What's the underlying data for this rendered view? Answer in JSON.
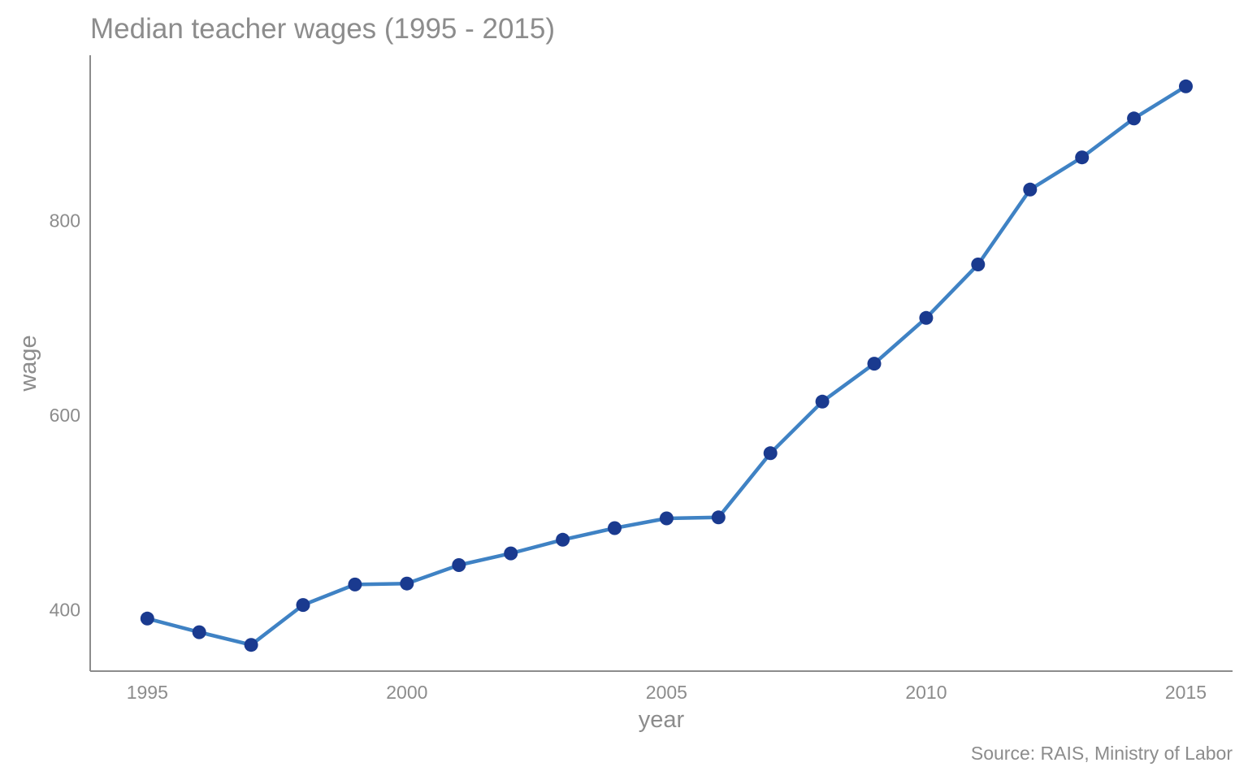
{
  "chart_data": {
    "type": "line",
    "title": "Median teacher wages (1995 - 2015)",
    "xlabel": "year",
    "ylabel": "wage",
    "caption": "Source: RAIS, Ministry of Labor",
    "xlim": [
      1993.9,
      2015.9
    ],
    "ylim": [
      337,
      970
    ],
    "grid": false,
    "x_ticks": [
      1995,
      2000,
      2005,
      2010,
      2015
    ],
    "x_tick_labels": [
      "1995",
      "2000",
      "2005",
      "2010",
      "2015"
    ],
    "y_ticks": [
      400,
      600,
      800
    ],
    "y_tick_labels": [
      "400",
      "600",
      "800"
    ],
    "series": [
      {
        "x": [
          1995,
          1996,
          1997,
          1998,
          1999,
          2000,
          2001,
          2002,
          2003,
          2004,
          2005,
          2006,
          2007,
          2008,
          2009,
          2010,
          2011,
          2012,
          2013,
          2014,
          2015
        ],
        "y": [
          391,
          377,
          364,
          405,
          426,
          427,
          446,
          458,
          472,
          484,
          494,
          495,
          561,
          614,
          653,
          700,
          755,
          832,
          865,
          905,
          938
        ],
        "line_color": "#3f82c4",
        "marker_color": "#1a3a8f"
      }
    ]
  }
}
